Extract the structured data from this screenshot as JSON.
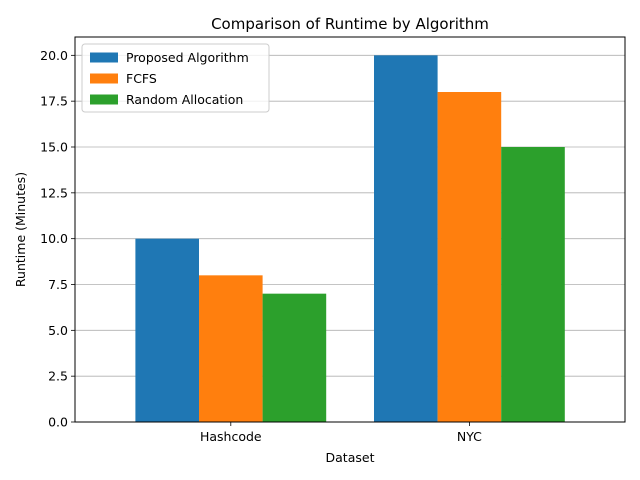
{
  "chart_data": {
    "type": "bar",
    "title": "Comparison of Runtime by Algorithm",
    "xlabel": "Dataset",
    "ylabel": "Runtime (Minutes)",
    "categories": [
      "Hashcode",
      "NYC"
    ],
    "series": [
      {
        "name": "Proposed Algorithm",
        "values": [
          10,
          20
        ],
        "color": "#1f77b4"
      },
      {
        "name": "FCFS",
        "values": [
          8,
          18
        ],
        "color": "#ff7f0e"
      },
      {
        "name": "Random Allocation",
        "values": [
          7,
          15
        ],
        "color": "#2ca02c"
      }
    ],
    "ylim": [
      0,
      21
    ],
    "yticks": [
      "0.0",
      "2.5",
      "5.0",
      "7.5",
      "10.0",
      "12.5",
      "15.0",
      "17.5",
      "20.0"
    ],
    "grid": "horizontal",
    "legend_position": "top-left"
  }
}
